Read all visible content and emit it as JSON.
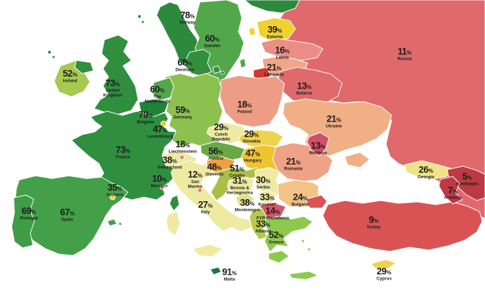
{
  "unit": "%",
  "colors": {
    "sea": "#ffffff",
    "border": "#ffffff",
    "label_text": "#1c1c1c"
  },
  "extra_regions": {
    "finland-tip": "#2c8a3c",
    "kaliningrad": "#cc3a33",
    "black-sea": "#ffffff"
  },
  "chart_data": {
    "type": "choropleth-map",
    "region": "Europe",
    "value_unit": "%",
    "notes": "green = high score, yellow = mid, red = low"
  },
  "countries": [
    {
      "id": "norway",
      "name": "Norway",
      "pct": 78,
      "color": "#2c8a3c"
    },
    {
      "id": "sweden",
      "name": "Sweden",
      "pct": 60,
      "color": "#53a74b"
    },
    {
      "id": "denmark",
      "name": "Denmark",
      "pct": 68,
      "color": "#338f3e"
    },
    {
      "id": "estonia",
      "name": "Estonia",
      "pct": 39,
      "color": "#f2d12f"
    },
    {
      "id": "latvia",
      "name": "Latvia",
      "pct": 16,
      "color": "#eb8e85"
    },
    {
      "id": "lithuania",
      "name": "Lithuania",
      "pct": 21,
      "color": "#f1a687"
    },
    {
      "id": "russia",
      "name": "Russia",
      "pct": 11,
      "color": "#e0696c"
    },
    {
      "id": "belarus",
      "name": "Belarus",
      "pct": 13,
      "color": "#e0696c"
    },
    {
      "id": "poland",
      "name": "Poland",
      "pct": 18,
      "color": "#ed9d85"
    },
    {
      "id": "ukraine",
      "name": "Ukraine",
      "pct": 21,
      "color": "#f1af85"
    },
    {
      "id": "moldova",
      "name": "Moldova",
      "pct": 13,
      "color": "#d14f68"
    },
    {
      "id": "romania",
      "name": "Romania",
      "pct": 21,
      "color": "#efa285"
    },
    {
      "id": "ireland",
      "name": "Ireland",
      "pct": 52,
      "color": "#a6ca4d"
    },
    {
      "id": "united-kingdom",
      "name": "United\nKingdom",
      "pct": 73,
      "color": "#2f8f3f"
    },
    {
      "id": "netherlands",
      "name": "The\nNetherlands",
      "pct": 60,
      "color": "#53a74b"
    },
    {
      "id": "belgium",
      "name": "Belgium",
      "pct": 79,
      "color": "#218339"
    },
    {
      "id": "luxembourg",
      "name": "Luxembourg",
      "pct": 47,
      "color": "#f2c12f"
    },
    {
      "id": "germany",
      "name": "Germany",
      "pct": 59,
      "color": "#8cc04f"
    },
    {
      "id": "france",
      "name": "France",
      "pct": 73,
      "color": "#2f8f3f"
    },
    {
      "id": "czech-republic",
      "name": "Czech\nRepublic",
      "pct": 29,
      "color": "#efeaa2"
    },
    {
      "id": "slovakia",
      "name": "Slovakia",
      "pct": 29,
      "color": "#eed34d"
    },
    {
      "id": "austria",
      "name": "Austria",
      "pct": 56,
      "color": "#69a845"
    },
    {
      "id": "hungary",
      "name": "Hungary",
      "pct": 47,
      "color": "#efc52f"
    },
    {
      "id": "slovenia",
      "name": "Slovenia",
      "pct": 48,
      "color": "#eea23d"
    },
    {
      "id": "croatia",
      "name": "Croatia",
      "pct": 51,
      "color": "#aabf48"
    },
    {
      "id": "liechtenstein",
      "name": "Liechtenstein",
      "pct": 18,
      "color": "#e3737d"
    },
    {
      "id": "switzerland",
      "name": "Switzerland",
      "pct": 38,
      "color": "#efeaa2"
    },
    {
      "id": "monaco",
      "name": "Monaco",
      "pct": 10,
      "color": "#e3737d"
    },
    {
      "id": "san-marino",
      "name": "San\nMarino",
      "pct": 12,
      "color": "#e3737d"
    },
    {
      "id": "italy",
      "name": "Italy",
      "pct": 27,
      "color": "#efeaa2"
    },
    {
      "id": "portugal",
      "name": "Portugal",
      "pct": 69,
      "color": "#3f9d45"
    },
    {
      "id": "spain",
      "name": "Spain",
      "pct": 67,
      "color": "#43a048"
    },
    {
      "id": "andorra",
      "name": "Andorra",
      "pct": 35,
      "color": "#eed34d"
    },
    {
      "id": "bosnia-herzegovina",
      "name": "Bosnia &\nHerzegovina",
      "pct": 31,
      "color": "#efeaa2"
    },
    {
      "id": "serbia",
      "name": "Serbia",
      "pct": 30,
      "color": "#efeaa2"
    },
    {
      "id": "montenegro",
      "name": "Montenegro",
      "pct": 38,
      "color": "#e2e08c"
    },
    {
      "id": "kosovo",
      "name": "Kosovo*",
      "pct": 33,
      "color": "#efeaa2"
    },
    {
      "id": "fyr-macedonia",
      "name": "FYR Macedonia",
      "pct": 14,
      "color": "#d4576b"
    },
    {
      "id": "albania",
      "name": "Albania",
      "pct": 33,
      "color": "#b5c94f"
    },
    {
      "id": "greece",
      "name": "Greece",
      "pct": 52,
      "color": "#8ec94f"
    },
    {
      "id": "bulgaria",
      "name": "Bulgaria",
      "pct": 24,
      "color": "#f2c286"
    },
    {
      "id": "turkey",
      "name": "Turkey",
      "pct": 9,
      "color": "#d95355"
    },
    {
      "id": "cyprus",
      "name": "Cyprus",
      "pct": 29,
      "color": "#eed34d"
    },
    {
      "id": "georgia",
      "name": "Georgia",
      "pct": 26,
      "color": "#efe487"
    },
    {
      "id": "armenia",
      "name": "Armenia",
      "pct": 7,
      "color": "#bc3a44"
    },
    {
      "id": "azerbaijan",
      "name": "Azerbaijan",
      "pct": 5,
      "color": "#bc3a44"
    },
    {
      "id": "malta",
      "name": "Malta",
      "pct": 91,
      "color": "#1a7a40"
    }
  ]
}
